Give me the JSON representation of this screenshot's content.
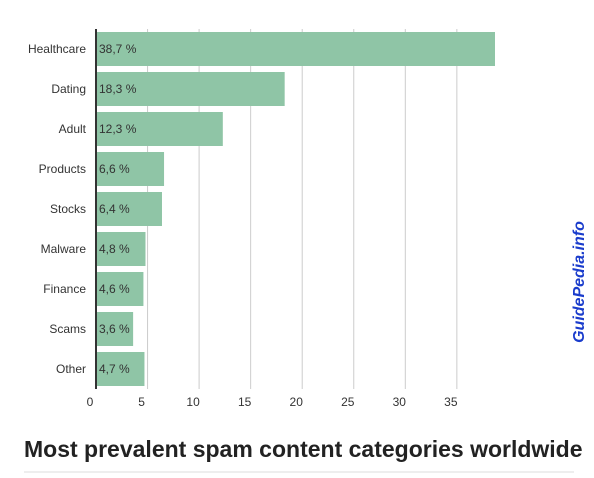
{
  "chart_data": {
    "type": "hbar",
    "title": "Most prevalent spam content categories worldwide",
    "watermark": "GuidePedia.info",
    "categories": [
      "Healthcare",
      "Dating",
      "Adult",
      "Products",
      "Stocks",
      "Malware",
      "Finance",
      "Scams",
      "Other"
    ],
    "values": [
      38.7,
      18.3,
      12.3,
      6.6,
      6.4,
      4.8,
      4.6,
      3.6,
      4.7
    ],
    "value_labels": [
      "38,7 %",
      "18,3 %",
      "12,3 %",
      "6,6 %",
      "6,4 %",
      "4,8 %",
      "4,6 %",
      "3,6 %",
      "4,7 %"
    ],
    "color": "#8fc5a6",
    "xlim": [
      0,
      38.7
    ],
    "xticks": [
      0,
      5,
      10,
      15,
      20,
      25,
      30,
      35
    ],
    "grid": true
  }
}
